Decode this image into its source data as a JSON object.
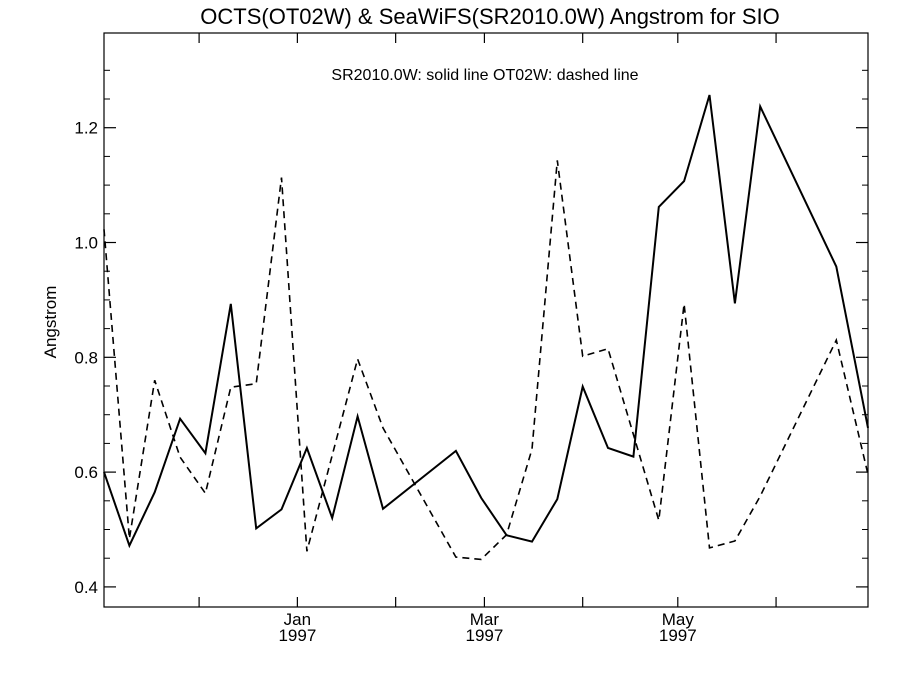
{
  "chart_data": {
    "type": "line",
    "title": "OCTS(OT02W) & SeaWiFS(SR2010.0W)  Angstrom for SIO",
    "ylabel": "Angstrom",
    "xlabel": "",
    "annotation": "SR2010.0W: solid line   OT02W: dashed line",
    "ylim": [
      0.365,
      1.365
    ],
    "xlim": [
      "1996-11-01",
      "1997-06-30"
    ],
    "yticks": [
      0.4,
      0.6,
      0.8,
      1.0,
      1.2
    ],
    "ytick_labels": [
      "0.4",
      "0.6",
      "0.8",
      "1.0",
      "1.2"
    ],
    "xticks": [
      {
        "date": "1997-01-01",
        "month": "Jan",
        "year": "1997"
      },
      {
        "date": "1997-03-01",
        "month": "Mar",
        "year": "1997"
      },
      {
        "date": "1997-05-01",
        "month": "May",
        "year": "1997"
      }
    ],
    "series": [
      {
        "name": "SR2010.0W",
        "style": "solid",
        "color": "#000000",
        "points": [
          [
            "1996-11-01",
            0.6
          ],
          [
            "1996-11-09",
            0.472
          ],
          [
            "1996-11-17",
            0.565
          ],
          [
            "1996-11-25",
            0.693
          ],
          [
            "1996-12-03",
            0.633
          ],
          [
            "1996-12-11",
            0.893
          ],
          [
            "1996-12-19",
            0.502
          ],
          [
            "1996-12-27",
            0.535
          ],
          [
            "1997-01-04",
            0.642
          ],
          [
            "1997-01-12",
            0.52
          ],
          [
            "1997-01-20",
            0.697
          ],
          [
            "1997-01-28",
            0.536
          ],
          [
            "1997-02-20",
            0.637
          ],
          [
            "1997-02-28",
            0.555
          ],
          [
            "1997-03-08",
            0.49
          ],
          [
            "1997-03-16",
            0.479
          ],
          [
            "1997-03-24",
            0.553
          ],
          [
            "1997-04-01",
            0.749
          ],
          [
            "1997-04-09",
            0.642
          ],
          [
            "1997-04-17",
            0.627
          ],
          [
            "1997-04-25",
            1.062
          ],
          [
            "1997-05-03",
            1.107
          ],
          [
            "1997-05-11",
            1.257
          ],
          [
            "1997-05-19",
            0.894
          ],
          [
            "1997-05-27",
            1.237
          ],
          [
            "1997-06-20",
            0.958
          ],
          [
            "1997-06-30",
            0.677
          ]
        ]
      },
      {
        "name": "OT02W",
        "style": "dashed",
        "color": "#000000",
        "points": [
          [
            "1996-11-01",
            1.023
          ],
          [
            "1996-11-09",
            0.484
          ],
          [
            "1996-11-17",
            0.76
          ],
          [
            "1996-11-25",
            0.626
          ],
          [
            "1996-12-03",
            0.563
          ],
          [
            "1996-12-11",
            0.748
          ],
          [
            "1996-12-19",
            0.754
          ],
          [
            "1996-12-27",
            1.113
          ],
          [
            "1997-01-04",
            0.462
          ],
          [
            "1997-01-20",
            0.797
          ],
          [
            "1997-01-28",
            0.677
          ],
          [
            "1997-02-20",
            0.452
          ],
          [
            "1997-02-28",
            0.448
          ],
          [
            "1997-03-08",
            0.491
          ],
          [
            "1997-03-16",
            0.64
          ],
          [
            "1997-03-24",
            1.143
          ],
          [
            "1997-04-01",
            0.802
          ],
          [
            "1997-04-09",
            0.815
          ],
          [
            "1997-04-25",
            0.516
          ],
          [
            "1997-05-03",
            0.893
          ],
          [
            "1997-05-11",
            0.468
          ],
          [
            "1997-05-19",
            0.48
          ],
          [
            "1997-05-27",
            0.558
          ],
          [
            "1997-06-20",
            0.83
          ],
          [
            "1997-06-30",
            0.596
          ]
        ]
      }
    ]
  }
}
